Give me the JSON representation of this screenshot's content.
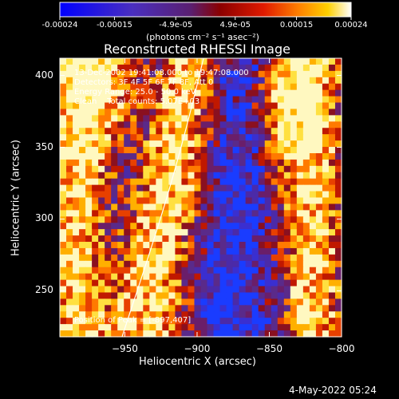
{
  "colorbar": {
    "tick_labels": [
      "-0.00024",
      "-0.00015",
      "-4.9e-05",
      "4.9e-05",
      "0.00015",
      "0.00024"
    ],
    "tick_values": [
      -0.00024,
      -0.00015,
      -4.9e-05,
      4.9e-05,
      0.00015,
      0.00024
    ],
    "range": [
      -0.00024,
      0.00024
    ],
    "units_label": "(photons cm⁻² s⁻¹ asec⁻²)"
  },
  "plot": {
    "title": "Reconstructed RHESSI Image",
    "xlabel": "Heliocentric X (arcsec)",
    "ylabel": "Heliocentric Y (arcsec)",
    "xlim": [
      -995,
      -800
    ],
    "ylim": [
      218,
      412
    ],
    "x_ticks": [
      -950,
      -900,
      -850,
      -800
    ],
    "y_ticks": [
      250,
      300,
      350,
      400
    ],
    "x_tick_labels": [
      "−950",
      "−900",
      "−850",
      "−800"
    ],
    "y_tick_labels": [
      "250",
      "300",
      "350",
      "400"
    ]
  },
  "annotations": {
    "line1": "13-Dec-2002 19:41:08.000 to 19:47:08.000",
    "line2": "Detectors: 3F 4F 5F 6F 7F 8F, Att 0",
    "line3": "Energy Range: 25.0 - 50.0 keV",
    "line4": "Clean    Total counts: 5.07E+03",
    "peak": "Position of Peak = [-897,407]"
  },
  "timestamp": "4-May-2022 05:24"
}
